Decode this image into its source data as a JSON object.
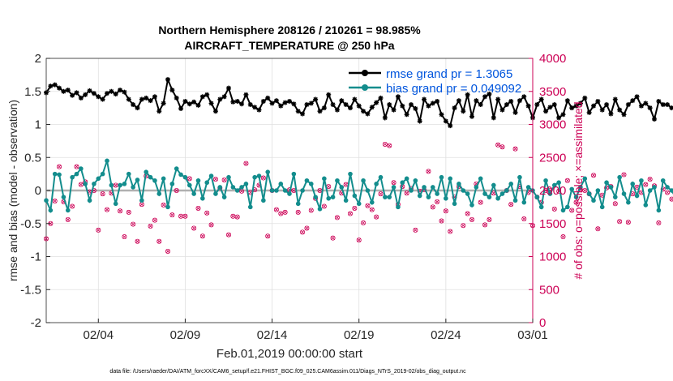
{
  "chart_data": {
    "type": "line",
    "title_line1": "Northern Hemisphere 208126 / 210261 = 98.985%",
    "title_line2": "AIRCRAFT_TEMPERATURE @ 250 hPa",
    "xlabel": "Feb.01,2019 00:00:00 start",
    "ylabel_left": "rmse and bias (model - observation)",
    "ylabel_right": "# of obs: o=possible; ×=assimilated",
    "footer": "data file: /Users/raeder/DAI/ATM_forcXX/CAM6_setup/f.e21.FHIST_BGC.f09_025.CAM6assim.011/Diags_NTrS_2019-02/obs_diag_output.nc",
    "x_range": [
      0,
      28
    ],
    "y_left_range": [
      -2,
      2
    ],
    "y_right_range": [
      0,
      4000
    ],
    "x_ticks": [
      {
        "value": 3,
        "label": "02/04"
      },
      {
        "value": 8,
        "label": "02/09"
      },
      {
        "value": 13,
        "label": "02/14"
      },
      {
        "value": 18,
        "label": "02/19"
      },
      {
        "value": 23,
        "label": "02/24"
      },
      {
        "value": 28,
        "label": "03/01"
      }
    ],
    "y_left_ticks": [
      {
        "value": 2,
        "label": "2"
      },
      {
        "value": 1.5,
        "label": "1.5"
      },
      {
        "value": 1,
        "label": "1"
      },
      {
        "value": 0.5,
        "label": "0.5"
      },
      {
        "value": 0,
        "label": "0"
      },
      {
        "value": -0.5,
        "label": "-0.5"
      },
      {
        "value": -1,
        "label": "-1"
      },
      {
        "value": -1.5,
        "label": "-1.5"
      },
      {
        "value": -2,
        "label": "-2"
      }
    ],
    "y_right_ticks": [
      {
        "value": 4000,
        "label": "4000"
      },
      {
        "value": 3500,
        "label": "3500"
      },
      {
        "value": 3000,
        "label": "3000"
      },
      {
        "value": 2500,
        "label": "2500"
      },
      {
        "value": 2000,
        "label": "2000"
      },
      {
        "value": 1500,
        "label": "1500"
      },
      {
        "value": 1000,
        "label": "1000"
      },
      {
        "value": 500,
        "label": "500"
      },
      {
        "value": 0,
        "label": "0"
      }
    ],
    "legend": [
      {
        "name": "rmse grand pr = 1.3065",
        "color": "#000000"
      },
      {
        "name": "bias grand pr = 0.049092",
        "color": "#008080"
      }
    ],
    "colors": {
      "rmse": "#000000",
      "bias": "#138d8d",
      "obs": "#cc0055",
      "legend_text": "#0055dd",
      "right_axis": "#cc0055",
      "grid": "#e0e0e0"
    },
    "step_days": 0.25,
    "series": [
      {
        "name": "rmse",
        "values": [
          1.48,
          1.58,
          1.6,
          1.55,
          1.5,
          1.52,
          1.44,
          1.48,
          1.4,
          1.45,
          1.51,
          1.47,
          1.42,
          1.38,
          1.47,
          1.5,
          1.46,
          1.52,
          1.49,
          1.38,
          1.3,
          1.25,
          1.38,
          1.4,
          1.36,
          1.42,
          1.2,
          1.32,
          1.68,
          1.52,
          1.4,
          1.24,
          1.35,
          1.31,
          1.34,
          1.29,
          1.42,
          1.45,
          1.32,
          1.2,
          1.38,
          1.42,
          1.55,
          1.34,
          1.35,
          1.31,
          1.45,
          1.3,
          1.26,
          1.22,
          1.35,
          1.4,
          1.32,
          1.36,
          1.28,
          1.33,
          1.35,
          1.31,
          1.2,
          1.16,
          1.3,
          1.32,
          1.38,
          1.2,
          1.25,
          1.45,
          1.3,
          1.22,
          1.36,
          1.3,
          1.25,
          1.38,
          1.28,
          1.2,
          1.16,
          1.26,
          1.33,
          1.4,
          1.1,
          1.3,
          1.22,
          1.42,
          1.28,
          1.15,
          1.3,
          1.24,
          1.05,
          1.38,
          1.28,
          1.32,
          1.35,
          1.15,
          1.05,
          0.98,
          1.25,
          1.36,
          1.2,
          1.45,
          1.12,
          1.36,
          1.3,
          1.42,
          1.46,
          1.1,
          1.38,
          1.22,
          1.3,
          1.35,
          1.18,
          1.36,
          1.42,
          1.28,
          1.1,
          1.3,
          1.38,
          1.2,
          1.26,
          1.3,
          1.1,
          1.15,
          1.36,
          1.25,
          1.28,
          1.32,
          1.4,
          1.18,
          1.28,
          1.35,
          1.22,
          1.3,
          1.16,
          1.38,
          1.22,
          1.15,
          1.3,
          1.36,
          1.42,
          1.28,
          1.32,
          1.25,
          1.08,
          1.35,
          1.3,
          1.3,
          1.25,
          1.3,
          1.3,
          1.28,
          1.24,
          1.22,
          1.18,
          1.25,
          1.3,
          1.26,
          1.3,
          1.2,
          1.28,
          1.22,
          1.25,
          1.2,
          1.18,
          1.22,
          1.28,
          1.25,
          1.3,
          1.22,
          1.26,
          1.3,
          1.3,
          1.22,
          1.26,
          1.3,
          1.3,
          1.2,
          1.28,
          1.26,
          1.33,
          1.3,
          1.28,
          1.26,
          1.22,
          1.26,
          1.25,
          1.29,
          1.3,
          1.24,
          1.3,
          1.26,
          1.27,
          1.26,
          1.28,
          1.25,
          1.26,
          1.27,
          1.28,
          1.27,
          1.26,
          1.27,
          1.27,
          1.26,
          1.27,
          1.26,
          1.26,
          1.27,
          1.26,
          1.26,
          1.27,
          1.26,
          1.26,
          1.26,
          1.25,
          1.26,
          1.25
        ]
      },
      {
        "name": "bias",
        "values": [
          -0.15,
          -0.3,
          0.25,
          0.24,
          -0.1,
          -0.3,
          0.2,
          0.25,
          0.33,
          0.1,
          -0.15,
          0.1,
          0.18,
          0.25,
          0.45,
          0.08,
          -0.2,
          0.08,
          0.1,
          0.25,
          0.05,
          0.16,
          -0.15,
          0.28,
          0.2,
          0.15,
          -0.05,
          0.18,
          -0.25,
          0.1,
          0.33,
          0.24,
          0.2,
          0.08,
          -0.05,
          0.15,
          -0.12,
          0.12,
          0.22,
          -0.05,
          0.05,
          -0.1,
          0.2,
          0.05,
          0.0,
          0.05,
          0.1,
          -0.25,
          0.2,
          0.22,
          -0.15,
          0.28,
          0.0,
          0.0,
          0.1,
          0.0,
          -0.05,
          0.25,
          -0.2,
          0.0,
          0.15,
          0.1,
          -0.1,
          -0.28,
          0.18,
          -0.12,
          -0.1,
          0.15,
          0.05,
          -0.15,
          0.25,
          -0.08,
          -0.2,
          0.15,
          0.0,
          -0.18,
          0.1,
          0.2,
          -0.1,
          -0.1,
          0.05,
          -0.25,
          0.12,
          0.18,
          0.0,
          0.15,
          -0.08,
          0.05,
          -0.1,
          0.05,
          -0.05,
          0.2,
          -0.12,
          0.18,
          -0.2,
          0.1,
          0.0,
          -0.05,
          -0.22,
          0.05,
          0.18,
          -0.05,
          -0.1,
          0.08,
          -0.12,
          -0.05,
          0.0,
          0.1,
          -0.15,
          0.2,
          -0.18,
          0.05,
          0.0,
          -0.1,
          -0.25,
          0.15,
          -0.05,
          0.08,
          0.12,
          -0.3,
          -0.25,
          0.02,
          -0.1,
          0.05,
          0.18,
          -0.05,
          -0.15,
          0.0,
          -0.25,
          0.12,
          0.05,
          -0.1,
          0.2,
          -0.05,
          -0.18,
          0.1,
          -0.08,
          0.15,
          -0.22,
          0.0,
          0.05,
          -0.3,
          0.15,
          0.05,
          0.0,
          -0.12,
          0.08,
          0.2,
          0.1,
          -0.05,
          0.0,
          -0.2,
          0.22,
          -0.25,
          0.05,
          0.15,
          -0.1,
          0.0,
          0.18,
          -0.15,
          0.12,
          0.05,
          -0.2,
          0.0,
          0.2,
          -0.1,
          0.05,
          0.12,
          -0.18,
          0.08,
          0.0,
          -0.05,
          0.15,
          -0.12,
          0.05,
          0.1,
          -0.08,
          0.12,
          -0.15,
          0.02,
          0.18,
          0.0,
          -0.12,
          -0.3,
          0.05,
          0.2,
          0.0,
          -0.05,
          0.1,
          0.0,
          0.15,
          0.18,
          0.05,
          -0.1,
          0.12,
          0.1,
          0.05,
          0.0,
          0.1,
          -0.15,
          0.2,
          0.05,
          -0.05,
          0.1,
          0.2,
          0.05,
          0.02,
          0.1,
          0.0,
          0.05,
          0.1,
          0.2,
          0.2,
          0.22
        ]
      },
      {
        "name": "obs",
        "axis": "right",
        "values": [
          1270,
          1500,
          1840,
          2360,
          1830,
          1560,
          1760,
          2360,
          2090,
          2130,
          1980,
          2000,
          1400,
          1950,
          1710,
          1960,
          2080,
          1690,
          1300,
          1670,
          1490,
          1230,
          1790,
          2220,
          1460,
          1550,
          1230,
          1780,
          1080,
          1630,
          2000,
          1610,
          1610,
          2180,
          1430,
          1730,
          1310,
          1660,
          1480,
          2170,
          2040,
          2160,
          1330,
          1610,
          1600,
          1990,
          2410,
          1970,
          2010,
          2080,
          2190,
          1310,
          2000,
          1710,
          1650,
          1670,
          2010,
          2000,
          1670,
          1370,
          1430,
          1700,
          1880,
          2000,
          1760,
          2060,
          1280,
          1590,
          1960,
          2090,
          1650,
          1730,
          1250,
          1510,
          1770,
          1710,
          1600,
          1950,
          2700,
          2680,
          2120,
          1790,
          2060,
          1960,
          2030,
          1400,
          1990,
          2010,
          2290,
          1750,
          1830,
          1540,
          1690,
          1380,
          1900,
          2060,
          1470,
          1650,
          1560,
          2100,
          1820,
          1480,
          1560,
          1960,
          2690,
          2660,
          2000,
          1790,
          2630,
          2060,
          1570,
          1970,
          1470,
          1900,
          1820,
          2000,
          2000,
          1720,
          1990,
          1300,
          2150,
          1700,
          1820,
          2010,
          2000,
          1950,
          2230,
          1420,
          1930,
          2040,
          2060,
          1800,
          1530,
          2240,
          1520,
          1950,
          2050,
          1970,
          2090,
          2170,
          2070,
          1510,
          2020,
          1970,
          1870,
          1600,
          1750,
          2480,
          1980,
          2100,
          1720,
          1520,
          1980,
          2830,
          2770,
          1890,
          2180,
          1490,
          1810,
          2080,
          1770,
          1950,
          1470,
          1300,
          1870,
          2060,
          1910,
          1810,
          2330,
          1760,
          1990,
          2070,
          1990,
          1980,
          1740,
          1290,
          1880,
          1980,
          2000,
          2000,
          2000,
          1900,
          2070,
          1990,
          1210,
          1940,
          2010,
          1760,
          1870,
          2000,
          2050,
          2010,
          1790,
          1990,
          1980,
          2000,
          3600,
          3300,
          3400,
          3510,
          3250,
          3230,
          0
        ]
      }
    ]
  }
}
